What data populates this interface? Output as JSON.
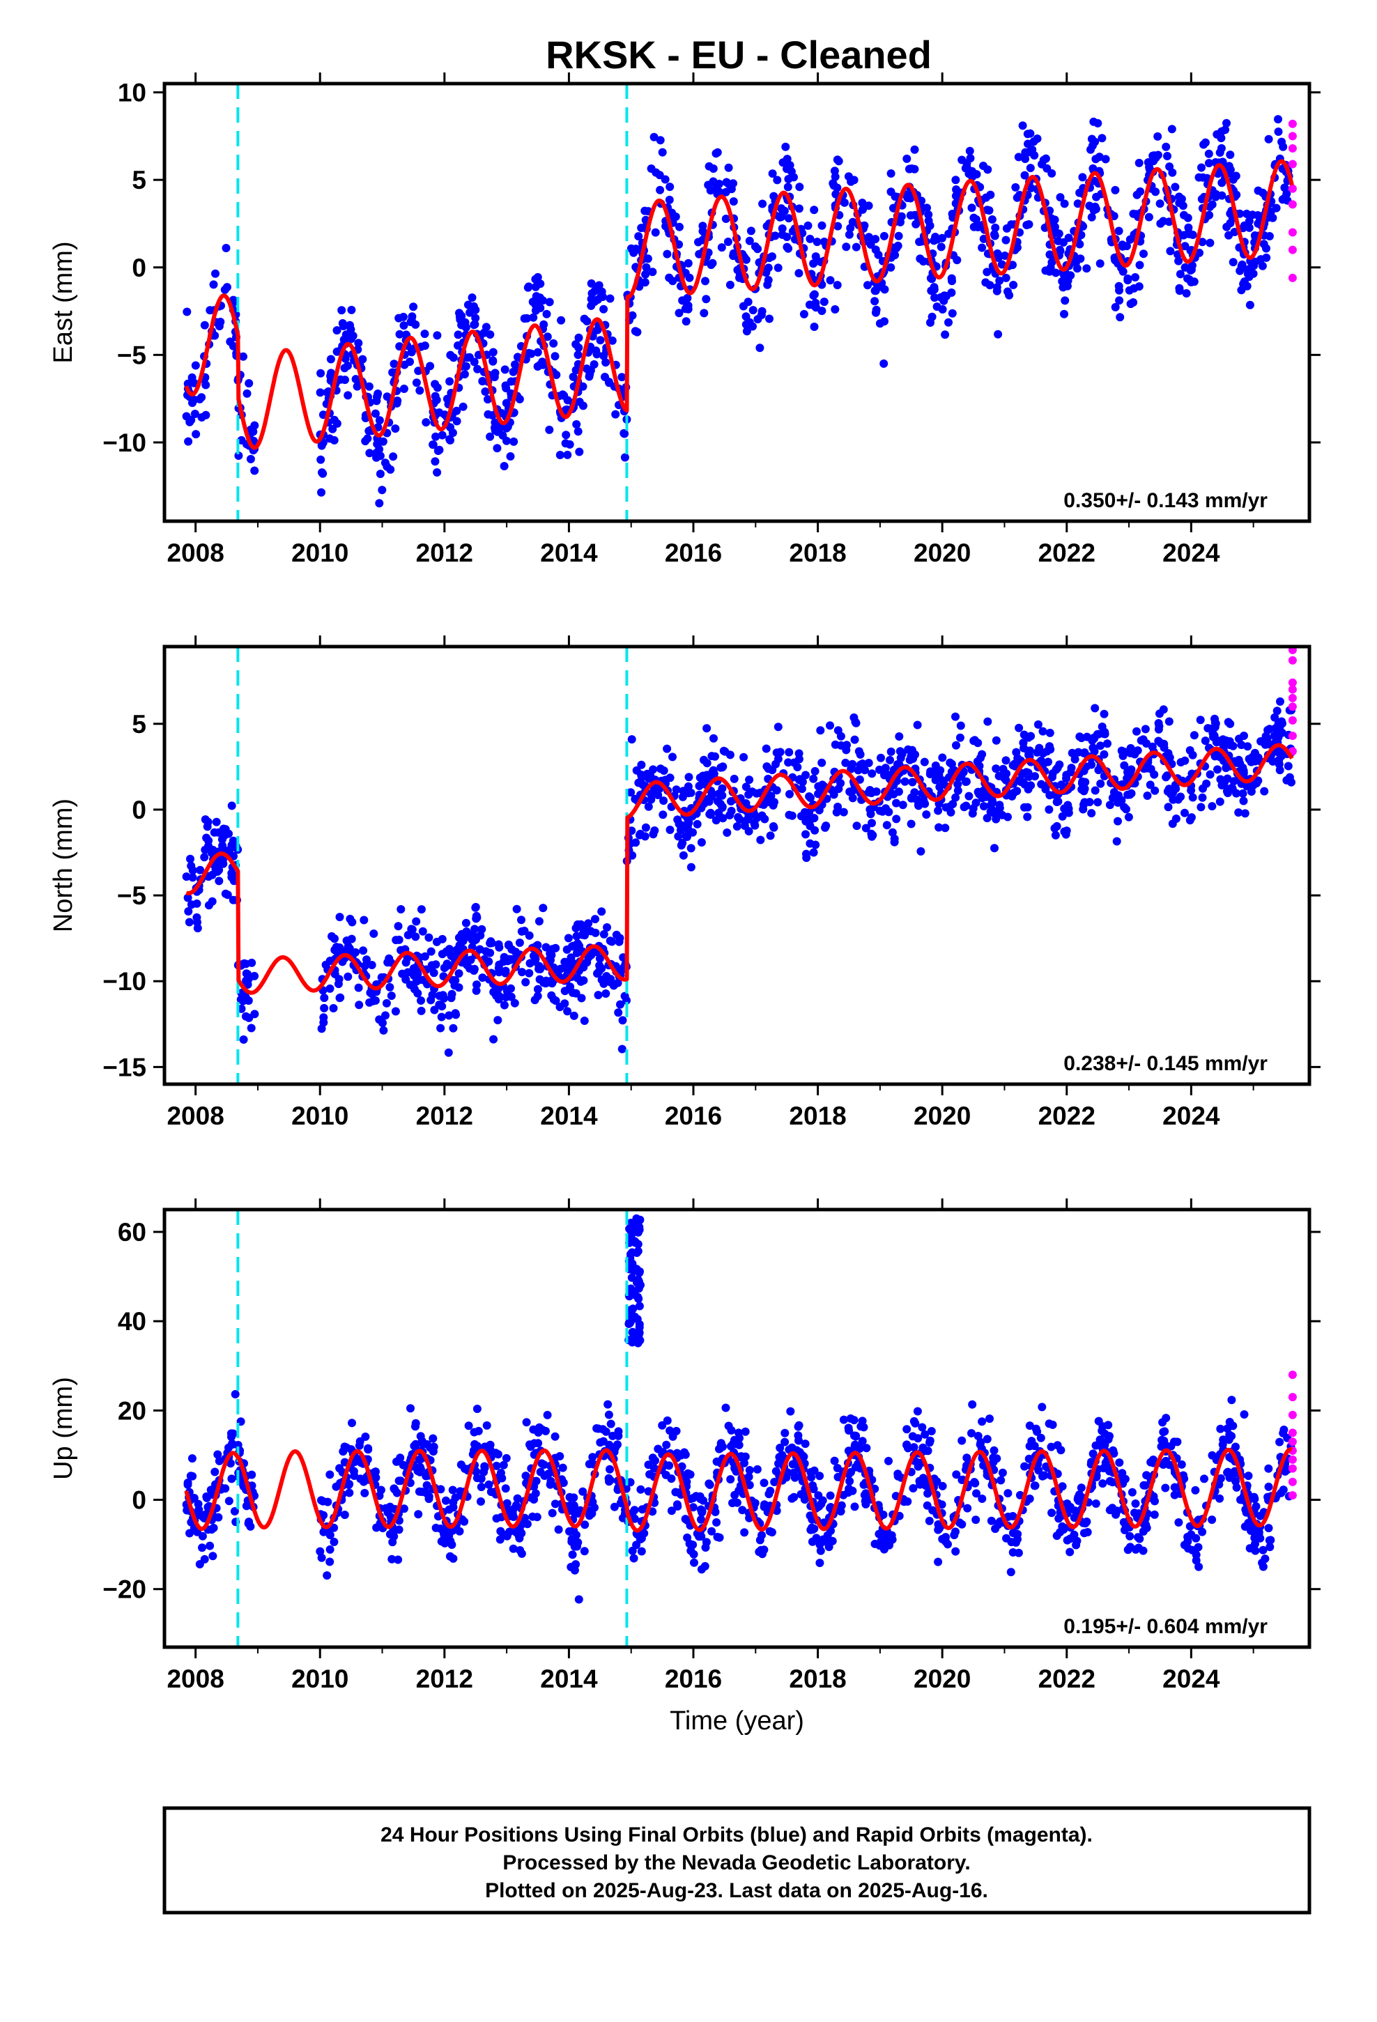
{
  "title": "RKSK  - EU - Cleaned",
  "colors": {
    "final": "#0000ff",
    "rapid": "#ff00ff",
    "model": "#ff0000",
    "offset": "#00e5ee",
    "frame": "#000000"
  },
  "caption": {
    "line1": "24 Hour Positions Using Final Orbits (blue) and Rapid Orbits (magenta).",
    "line2": "Processed by the Nevada Geodetic Laboratory.",
    "line3": "Plotted on 2025-Aug-23. Last data on 2025-Aug-16."
  },
  "chart_data": [
    {
      "type": "scatter",
      "component": "east",
      "ylabel": "East (mm)",
      "xlabel": "",
      "xlim": [
        2007.5,
        2025.9
      ],
      "ylim": [
        -14.5,
        10.5
      ],
      "xticks": [
        2008,
        2010,
        2012,
        2014,
        2016,
        2018,
        2020,
        2022,
        2024
      ],
      "yticks": [
        10,
        5,
        0,
        -5,
        -10
      ],
      "rate_label": "0.350+/- 0.143 mm/yr",
      "offsets": [
        2008.68,
        2014.93
      ],
      "model": {
        "segments": [
          {
            "x": [
              2007.85,
              2008.68
            ],
            "base_start": -4.6,
            "base_end": -4.2
          },
          {
            "x": [
              2008.68,
              2014.93
            ],
            "base_start": -7.7,
            "base_end": -5.5
          },
          {
            "x": [
              2014.93,
              2025.62
            ],
            "base_start": 1.0,
            "base_end": 3.4
          }
        ],
        "annual_amplitude": 2.7,
        "peak_phase": 0.45
      },
      "final_series": {
        "name": "Final Orbits",
        "x_range": [
          2007.85,
          2025.62
        ],
        "noise_sd": 1.6,
        "gap": [
          2008.95,
          2010.0
        ],
        "n_points": 1500
      },
      "rapid_series": {
        "name": "Rapid Orbits",
        "x": [
          2025.63,
          2025.63,
          2025.63,
          2025.63,
          2025.63,
          2025.63,
          2025.63,
          2025.63,
          2025.63
        ],
        "y": [
          8.2,
          7.5,
          6.8,
          5.9,
          4.5,
          3.6,
          2.0,
          1.0,
          -0.6
        ]
      }
    },
    {
      "type": "scatter",
      "component": "north",
      "ylabel": "North (mm)",
      "xlabel": "",
      "xlim": [
        2007.5,
        2025.9
      ],
      "ylim": [
        -16,
        9.5
      ],
      "xticks": [
        2008,
        2010,
        2012,
        2014,
        2016,
        2018,
        2020,
        2022,
        2024
      ],
      "yticks": [
        5,
        0,
        -5,
        -10,
        -15
      ],
      "rate_label": "0.238+/- 0.145 mm/yr",
      "offsets": [
        2008.68,
        2014.93
      ],
      "model": {
        "segments": [
          {
            "x": [
              2007.85,
              2008.68
            ],
            "base_start": -3.9,
            "base_end": -3.4
          },
          {
            "x": [
              2008.68,
              2014.93
            ],
            "base_start": -9.7,
            "base_end": -8.9
          },
          {
            "x": [
              2014.93,
              2025.62
            ],
            "base_start": 0.5,
            "base_end": 2.8
          }
        ],
        "annual_amplitude": 1.0,
        "peak_phase": 0.4
      },
      "final_series": {
        "name": "Final Orbits",
        "x_range": [
          2007.85,
          2025.62
        ],
        "noise_sd": 1.3,
        "gap": [
          2008.95,
          2010.0
        ],
        "n_points": 1500
      },
      "rapid_series": {
        "name": "Rapid Orbits",
        "x": [
          2025.63,
          2025.63,
          2025.63,
          2025.63,
          2025.63,
          2025.63,
          2025.63,
          2025.63,
          2025.63
        ],
        "y": [
          9.3,
          8.7,
          7.4,
          7.0,
          6.5,
          6.0,
          5.2,
          4.3,
          3.4
        ]
      }
    },
    {
      "type": "scatter",
      "component": "up",
      "ylabel": "Up (mm)",
      "xlabel": "Time (year)",
      "xlim": [
        2007.5,
        2025.9
      ],
      "ylim": [
        -33,
        65
      ],
      "xticks": [
        2008,
        2010,
        2012,
        2014,
        2016,
        2018,
        2020,
        2022,
        2024
      ],
      "yticks": [
        60,
        40,
        20,
        0,
        -20
      ],
      "rate_label": "0.195+/- 0.604 mm/yr",
      "offsets": [
        2008.68,
        2014.93
      ],
      "model": {
        "segments": [
          {
            "x": [
              2007.85,
              2008.68
            ],
            "base_start": 2.0,
            "base_end": 2.0
          },
          {
            "x": [
              2008.68,
              2014.93
            ],
            "base_start": 2.3,
            "base_end": 2.6
          },
          {
            "x": [
              2014.93,
              2025.62
            ],
            "base_start": 1.6,
            "base_end": 2.8
          }
        ],
        "annual_amplitude": 8.5,
        "peak_phase": 0.6
      },
      "final_series": {
        "name": "Final Orbits",
        "x_range": [
          2007.85,
          2025.62
        ],
        "noise_sd": 5.0,
        "gap": [
          2008.95,
          2010.0
        ],
        "n_points": 1500
      },
      "outlier_cluster": {
        "x_range": [
          2014.95,
          2015.15
        ],
        "y_range": [
          35,
          63
        ]
      },
      "rapid_series": {
        "name": "Rapid Orbits",
        "x": [
          2025.63,
          2025.63,
          2025.63,
          2025.63,
          2025.63,
          2025.63,
          2025.63,
          2025.63,
          2025.63,
          2025.63
        ],
        "y": [
          28,
          23,
          19,
          15,
          13,
          11,
          9,
          7,
          4,
          1
        ]
      }
    }
  ]
}
